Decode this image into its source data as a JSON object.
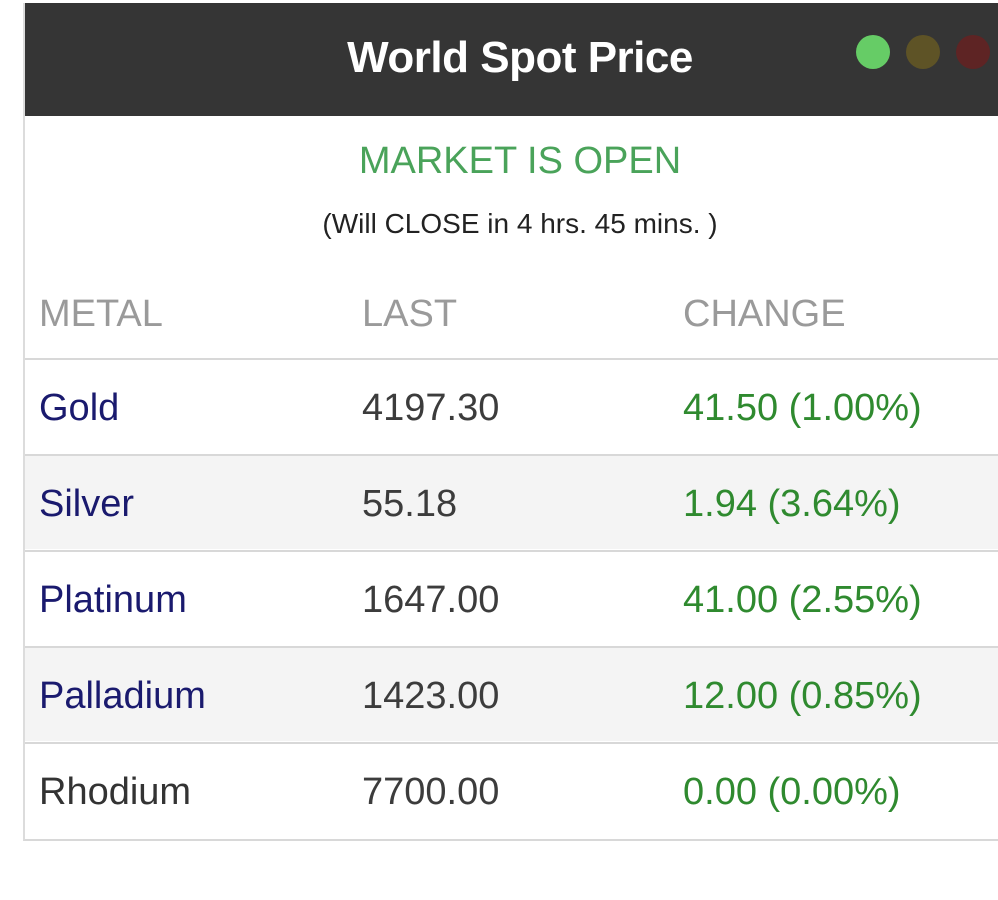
{
  "header": {
    "title": "World Spot Price",
    "colors": {
      "background": "#353535",
      "dot_green": "#66cc66",
      "dot_olive": "#5e5326",
      "dot_red": "#5e2424"
    }
  },
  "market": {
    "status": "MARKET IS OPEN",
    "countdown": "(Will CLOSE in 4 hrs. 45 mins. )",
    "status_color": "#4aa35a"
  },
  "table": {
    "columns": [
      "METAL",
      "LAST",
      "CHANGE"
    ],
    "rows": [
      {
        "metal": "Gold",
        "last": "4197.30",
        "change": "41.50 (1.00%)"
      },
      {
        "metal": "Silver",
        "last": "55.18",
        "change": "1.94 (3.64%)"
      },
      {
        "metal": "Platinum",
        "last": "1647.00",
        "change": "41.00 (2.55%)"
      },
      {
        "metal": "Palladium",
        "last": "1423.00",
        "change": "12.00 (0.85%)"
      },
      {
        "metal": "Rhodium",
        "last": "7700.00",
        "change": "0.00 (0.00%)"
      }
    ],
    "colors": {
      "metal_link": "#1a1a6e",
      "positive_change": "#2f8a2f",
      "header_text": "#9a9a9a"
    }
  }
}
